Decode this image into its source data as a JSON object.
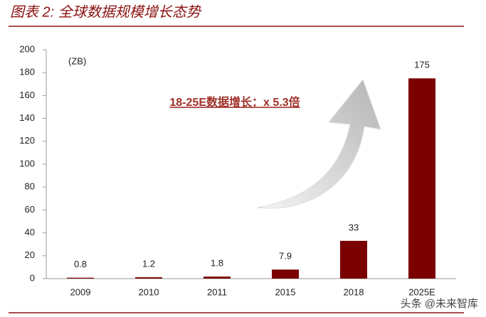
{
  "chart_data": {
    "type": "bar",
    "title": "图表 2:  全球数据规模增长态势",
    "unit": "(ZB)",
    "annotation": "18-25E数据增长：x 5.3倍",
    "watermark": "头条 @未来智库",
    "categories": [
      "2009",
      "2010",
      "2011",
      "2015",
      "2018",
      "2025E"
    ],
    "values": [
      0.8,
      1.2,
      1.8,
      7.9,
      33,
      175
    ],
    "color": "#7b0000",
    "ylim": [
      0,
      200
    ],
    "yticks": [
      0,
      20,
      40,
      60,
      80,
      100,
      120,
      140,
      160,
      180,
      200
    ],
    "grid": false
  }
}
